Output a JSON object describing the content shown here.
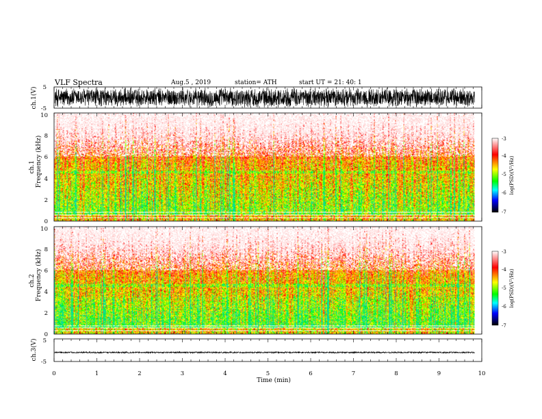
{
  "header": {
    "title": "VLF  Spectra",
    "date": "Aug.5  , 2019",
    "station": "station= ATH",
    "start": "start  UT  =   21: 40: 1"
  },
  "chart_data": [
    {
      "type": "line",
      "name": "ch1-waveform",
      "ylabel": "ch.1(V)",
      "ylim": [
        -5,
        5
      ],
      "yticks": [
        "5",
        "-5"
      ],
      "xlim": [
        0,
        10
      ],
      "x_data_end": 9.83,
      "amplitude_range": [
        -5,
        5
      ],
      "trace_color": "#000000"
    },
    {
      "type": "heatmap",
      "name": "ch1-spectrogram",
      "ylabel": "ch.1\nFrequency (kHz)",
      "ylabel_line1": "ch.1",
      "ylabel_line2": "Frequency  (kHz)",
      "ylim": [
        0,
        10
      ],
      "yticks": [
        "0",
        "2",
        "4",
        "6",
        "8",
        "10"
      ],
      "xlim": [
        0,
        10
      ],
      "x_data_end": 9.83,
      "colorbar": {
        "label": "log(PSD)(V²/Hz)",
        "range": [
          -7,
          -3
        ],
        "ticks": [
          "-3",
          "-4",
          "-5",
          "-6",
          "-7"
        ],
        "colors": [
          "#ffffff",
          "#ff0000",
          "#ffff00",
          "#00ff00",
          "#00ffff",
          "#0000ff",
          "#000000"
        ]
      }
    },
    {
      "type": "heatmap",
      "name": "ch2-spectrogram",
      "ylabel": "ch.2\nFrequency (kHz)",
      "ylabel_line1": "ch.2",
      "ylabel_line2": "Frequency  (kHz)",
      "ylim": [
        0,
        10
      ],
      "yticks": [
        "0",
        "2",
        "4",
        "6",
        "8",
        "10"
      ],
      "xlim": [
        0,
        10
      ],
      "x_data_end": 9.83,
      "colorbar": {
        "label": "log(PSD)(V²/Hz)",
        "range": [
          -7,
          -3
        ],
        "ticks": [
          "-3",
          "-4",
          "-5",
          "-6",
          "-7"
        ],
        "colors": [
          "#ffffff",
          "#ff0000",
          "#ffff00",
          "#00ff00",
          "#00ffff",
          "#0000ff",
          "#000000"
        ]
      }
    },
    {
      "type": "line",
      "name": "ch3-waveform",
      "ylabel": "ch.3(V)",
      "ylim": [
        -5,
        5
      ],
      "yticks": [
        "5",
        "-5"
      ],
      "xlim": [
        0,
        10
      ],
      "x_data_end": 9.83,
      "baseline": -1,
      "amplitude": 0.3,
      "trace_color": "#000000"
    }
  ],
  "xaxis": {
    "label": "Time  (min)",
    "ticks": [
      "0",
      "1",
      "2",
      "3",
      "4",
      "5",
      "6",
      "7",
      "8",
      "9",
      "10"
    ]
  }
}
